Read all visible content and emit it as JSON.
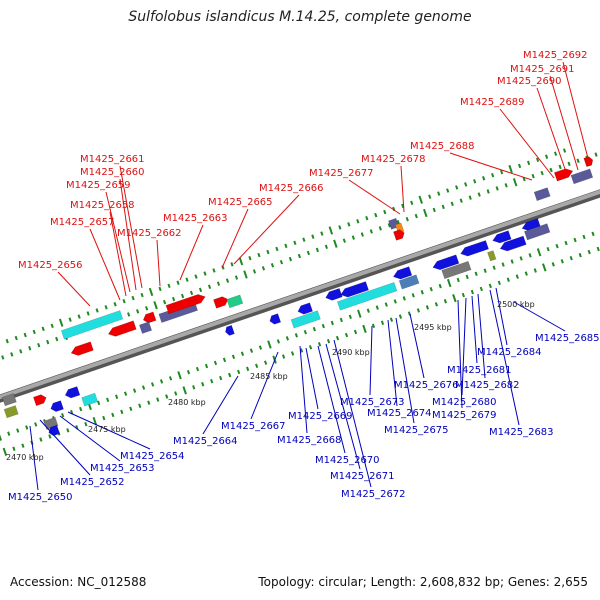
{
  "title": "Sulfolobus islandicus M.14.25, complete genome",
  "footer": {
    "accession": "Accession: NC_012588",
    "topology": "Topology: circular; Length: 2,608,832 bp; Genes: 2,655"
  },
  "colors": {
    "upper_label": "#dd1111",
    "lower_label": "#0000bb",
    "backbone": "#8c8c8c",
    "tick": "#1f8a1f",
    "gene_red": "#ee0000",
    "gene_blue": "#1111dd",
    "gene_cyan": "#22dddd",
    "gene_slate": "#5a5a9a",
    "gene_steel": "#4a7fb8",
    "gene_gray": "#777777",
    "gene_olive": "#8a9a2a",
    "gene_orange": "#f08a10",
    "gene_green": "#22cc88"
  },
  "scale_labels": [
    "2470 kbp",
    "2475 kbp",
    "2480 kbp",
    "2485 kbp",
    "2490 kbp",
    "2495 kbp",
    "2500 kbp"
  ],
  "upper_genes": [
    "M1425_2656",
    "M1425_2657",
    "M1425_2658",
    "M1425_2659",
    "M1425_2660",
    "M1425_2661",
    "M1425_2662",
    "M1425_2663",
    "M1425_2665",
    "M1425_2666",
    "M1425_2677",
    "M1425_2678",
    "M1425_2688",
    "M1425_2689",
    "M1425_2690",
    "M1425_2691",
    "M1425_2692"
  ],
  "lower_genes": [
    "M1425_2650",
    "M1425_2652",
    "M1425_2653",
    "M1425_2654",
    "M1425_2664",
    "M1425_2667",
    "M1425_2668",
    "M1425_2669",
    "M1425_2670",
    "M1425_2671",
    "M1425_2672",
    "M1425_2673",
    "M1425_2674",
    "M1425_2675",
    "M1425_2676",
    "M1425_2679",
    "M1425_2680",
    "M1425_2681",
    "M1425_2682",
    "M1425_2683",
    "M1425_2684",
    "M1425_2685"
  ]
}
